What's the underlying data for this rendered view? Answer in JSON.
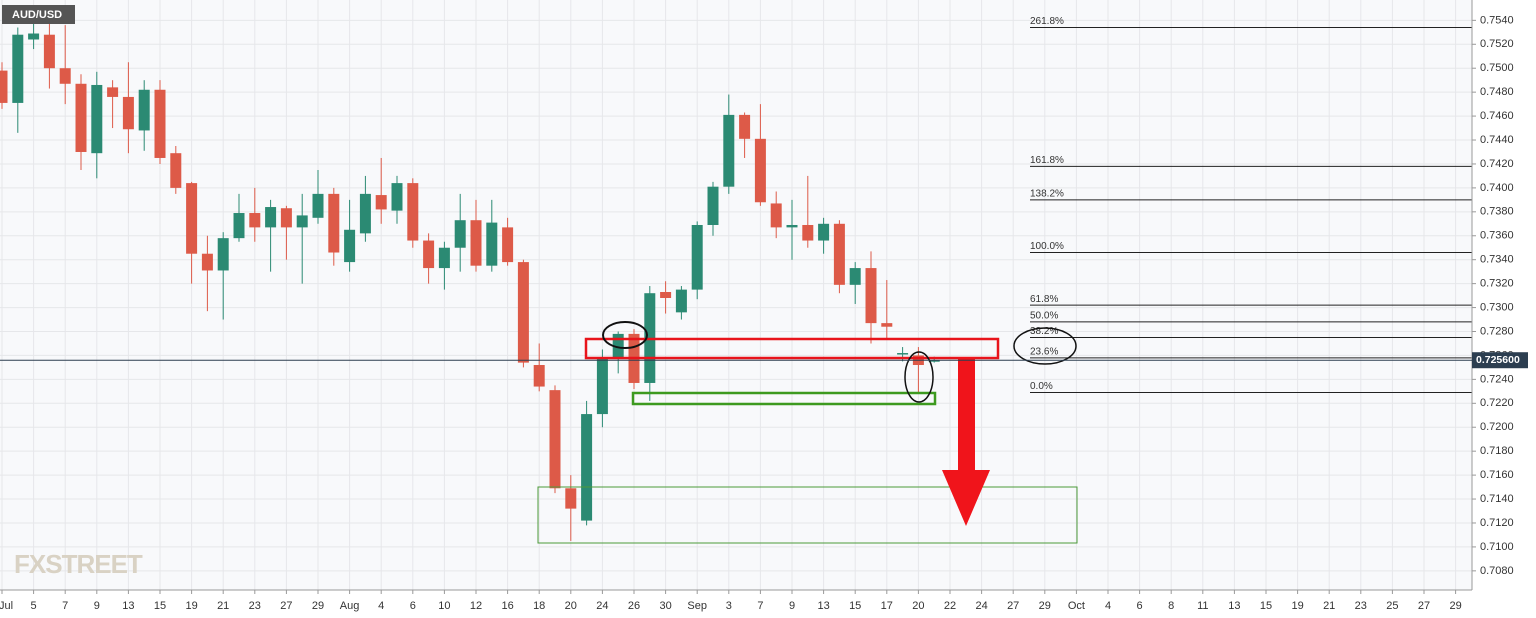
{
  "chart_data": {
    "type": "candlestick",
    "title": "AUD/USD",
    "watermark": "FXSTREET",
    "up_color": "#2b8a73",
    "down_color": "#dd5a48",
    "ylim": [
      0.7064,
      0.7557
    ],
    "yticks": [
      {
        "value": 0.754,
        "label": "0.7540"
      },
      {
        "value": 0.752,
        "label": "0.7520"
      },
      {
        "value": 0.75,
        "label": "0.7500"
      },
      {
        "value": 0.748,
        "label": "0.7480"
      },
      {
        "value": 0.746,
        "label": "0.7460"
      },
      {
        "value": 0.744,
        "label": "0.7440"
      },
      {
        "value": 0.742,
        "label": "0.7420"
      },
      {
        "value": 0.74,
        "label": "0.7400"
      },
      {
        "value": 0.738,
        "label": "0.7380"
      },
      {
        "value": 0.736,
        "label": "0.7360"
      },
      {
        "value": 0.734,
        "label": "0.7340"
      },
      {
        "value": 0.732,
        "label": "0.7320"
      },
      {
        "value": 0.73,
        "label": "0.7300"
      },
      {
        "value": 0.728,
        "label": "0.7280"
      },
      {
        "value": 0.726,
        "label": "0.7260"
      },
      {
        "value": 0.724,
        "label": "0.7240"
      },
      {
        "value": 0.722,
        "label": "0.7220"
      },
      {
        "value": 0.72,
        "label": "0.7200"
      },
      {
        "value": 0.718,
        "label": "0.7180"
      },
      {
        "value": 0.716,
        "label": "0.7160"
      },
      {
        "value": 0.714,
        "label": "0.7140"
      },
      {
        "value": 0.712,
        "label": "0.7120"
      },
      {
        "value": 0.71,
        "label": "0.7100"
      },
      {
        "value": 0.708,
        "label": "0.7080"
      }
    ],
    "grid": true,
    "xtick_labels": [
      "Jul",
      "5",
      "7",
      "9",
      "13",
      "15",
      "19",
      "21",
      "23",
      "27",
      "29",
      "Aug",
      "4",
      "6",
      "10",
      "12",
      "16",
      "18",
      "20",
      "24",
      "26",
      "30",
      "Sep",
      "3",
      "7",
      "9",
      "13",
      "15",
      "17",
      "20",
      "22",
      "24",
      "27",
      "29",
      "Oct",
      "4",
      "6",
      "8",
      "11",
      "13",
      "15",
      "19",
      "21",
      "23",
      "25",
      "27",
      "29"
    ],
    "current_price": {
      "value": 0.7256,
      "label": "0.725600"
    },
    "open": [
      0.7498,
      0.7471,
      0.7524,
      0.7528,
      0.75,
      0.7487,
      0.7429,
      0.7484,
      0.7476,
      0.7448,
      0.7482,
      0.7429,
      0.7404,
      0.7345,
      0.7331,
      0.7358,
      0.7379,
      0.7367,
      0.7383,
      0.7367,
      0.7375,
      0.7395,
      0.7338,
      0.7362,
      0.7394,
      0.7381,
      0.7404,
      0.7356,
      0.7333,
      0.735,
      0.7373,
      0.7335,
      0.7367,
      0.7338,
      0.7252,
      0.7231,
      0.7149,
      0.7122,
      0.7211,
      0.7257,
      0.7278,
      0.7237,
      0.7313,
      0.7296,
      0.7315,
      0.7369,
      0.7401,
      0.7461,
      0.7441,
      0.7387,
      0.7367,
      0.7369,
      0.7356,
      0.737,
      0.7319,
      0.7333,
      0.7287,
      0.7261,
      0.726,
      0.7256
    ],
    "high": [
      0.7505,
      0.7534,
      0.7545,
      0.754,
      0.7536,
      0.7495,
      0.7497,
      0.749,
      0.7505,
      0.749,
      0.749,
      0.7435,
      0.7405,
      0.736,
      0.7363,
      0.7395,
      0.74,
      0.739,
      0.7385,
      0.7395,
      0.7415,
      0.74,
      0.739,
      0.741,
      0.7425,
      0.741,
      0.7408,
      0.7362,
      0.7355,
      0.7395,
      0.739,
      0.739,
      0.7375,
      0.734,
      0.727,
      0.7235,
      0.716,
      0.7222,
      0.7265,
      0.728,
      0.7282,
      0.7318,
      0.7322,
      0.7318,
      0.7372,
      0.7405,
      0.7478,
      0.7463,
      0.747,
      0.7397,
      0.739,
      0.741,
      0.7375,
      0.7373,
      0.7338,
      0.7347,
      0.7323,
      0.7267,
      0.7267,
      0.7259
    ],
    "low": [
      0.7466,
      0.7446,
      0.7516,
      0.7483,
      0.747,
      0.7415,
      0.7408,
      0.745,
      0.7429,
      0.7431,
      0.742,
      0.7395,
      0.732,
      0.7297,
      0.729,
      0.7355,
      0.7355,
      0.733,
      0.734,
      0.732,
      0.737,
      0.7335,
      0.733,
      0.7355,
      0.737,
      0.737,
      0.735,
      0.732,
      0.7315,
      0.733,
      0.733,
      0.733,
      0.7335,
      0.725,
      0.723,
      0.7145,
      0.7105,
      0.7118,
      0.72,
      0.7245,
      0.7232,
      0.7222,
      0.7295,
      0.729,
      0.7307,
      0.736,
      0.7395,
      0.7425,
      0.7385,
      0.7358,
      0.734,
      0.735,
      0.7345,
      0.7312,
      0.7303,
      0.727,
      0.7273,
      0.7255,
      0.7228,
      0.7254
    ],
    "close": [
      0.7471,
      0.7528,
      0.7529,
      0.75,
      0.7487,
      0.743,
      0.7486,
      0.7476,
      0.7449,
      0.7482,
      0.7425,
      0.74,
      0.7345,
      0.7331,
      0.7358,
      0.7379,
      0.7367,
      0.7384,
      0.7367,
      0.7377,
      0.7395,
      0.7346,
      0.7365,
      0.7395,
      0.7382,
      0.7404,
      0.7356,
      0.7333,
      0.735,
      0.7373,
      0.7335,
      0.7371,
      0.7338,
      0.7254,
      0.7234,
      0.7149,
      0.7132,
      0.7211,
      0.7257,
      0.7278,
      0.7237,
      0.7312,
      0.7308,
      0.7315,
      0.7369,
      0.7401,
      0.7461,
      0.7441,
      0.7388,
      0.7367,
      0.7369,
      0.7356,
      0.737,
      0.7319,
      0.7333,
      0.7287,
      0.7284,
      0.7262,
      0.7252,
      0.7256
    ],
    "fib_levels": [
      {
        "name": "261.8%",
        "price": 0.7534
      },
      {
        "name": "161.8%",
        "price": 0.7418
      },
      {
        "name": "138.2%",
        "price": 0.739
      },
      {
        "name": "100.0%",
        "price": 0.7346
      },
      {
        "name": "61.8%",
        "price": 0.7302
      },
      {
        "name": "50.0%",
        "price": 0.7288
      },
      {
        "name": "38.2%",
        "price": 0.7275
      },
      {
        "name": "23.6%",
        "price": 0.7258
      },
      {
        "name": "0.0%",
        "price": 0.7229
      }
    ]
  }
}
